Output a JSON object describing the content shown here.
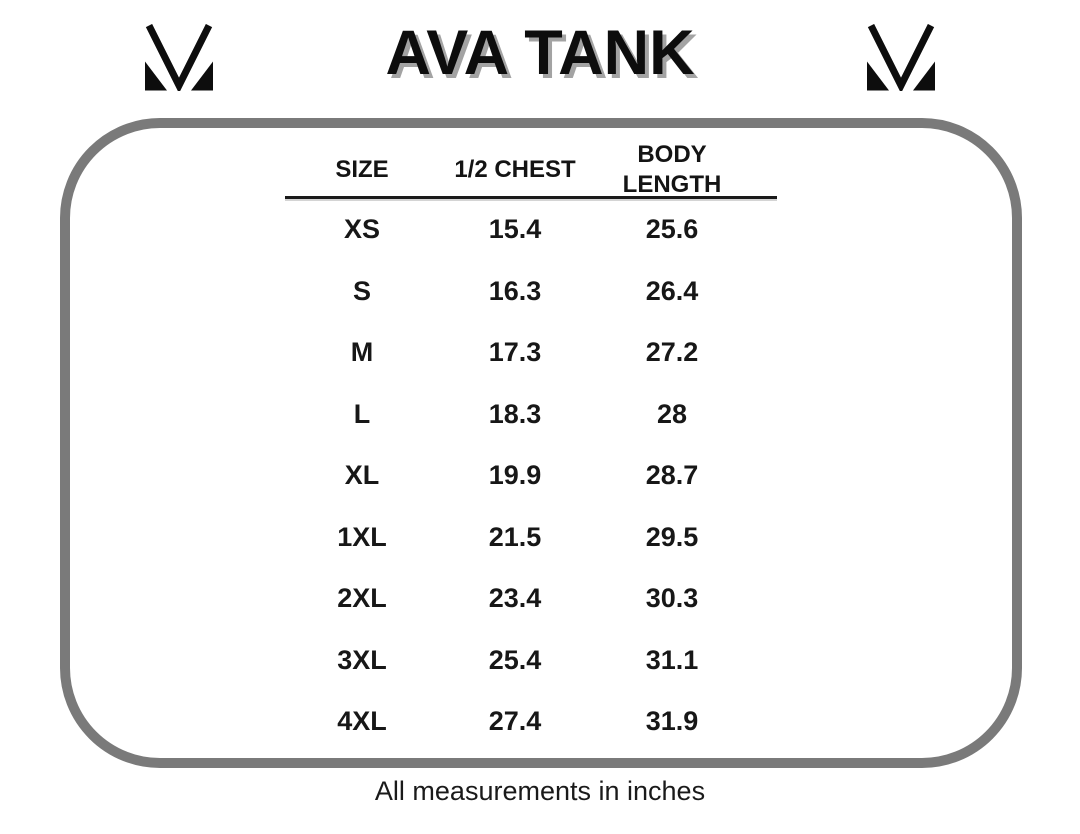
{
  "title": "AVA TANK",
  "footnote": "All measurements in inches",
  "icons": {
    "brand_mark": "mv-monogram-icon"
  },
  "colors": {
    "frame_gray": "#7a7a7a",
    "title_shadow_gray": "#a3a3a3",
    "text_black": "#151515"
  },
  "chart_data": {
    "type": "table",
    "title": "AVA TANK",
    "columns": [
      "SIZE",
      "1/2 CHEST",
      "BODY LENGTH"
    ],
    "rows": [
      [
        "XS",
        "15.4",
        "25.6"
      ],
      [
        "S",
        "16.3",
        "26.4"
      ],
      [
        "M",
        "17.3",
        "27.2"
      ],
      [
        "L",
        "18.3",
        "28"
      ],
      [
        "XL",
        "19.9",
        "28.7"
      ],
      [
        "1XL",
        "21.5",
        "29.5"
      ],
      [
        "2XL",
        "23.4",
        "30.3"
      ],
      [
        "3XL",
        "25.4",
        "31.1"
      ],
      [
        "4XL",
        "27.4",
        "31.9"
      ]
    ],
    "note": "All measurements in inches",
    "units": "inches"
  }
}
